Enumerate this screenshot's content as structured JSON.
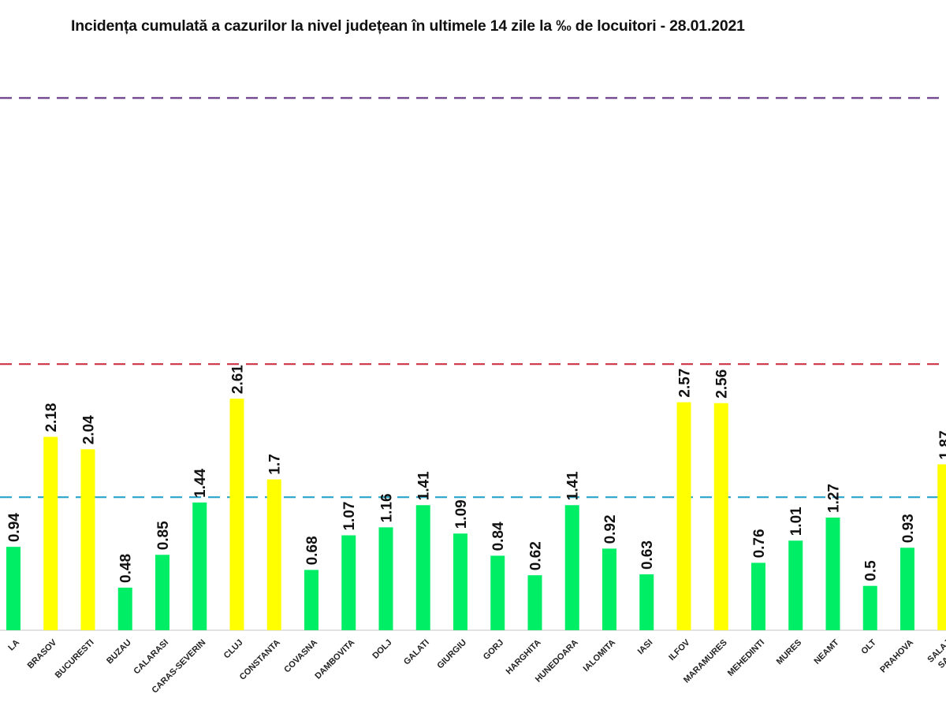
{
  "chart_data": {
    "type": "bar",
    "title": "Incidența cumulată a cazurilor la nivel județean în ultimele 14 zile la ‰ de locuitori - 28.01.2021",
    "xlabel": "",
    "ylabel": "",
    "ylim": [
      0,
      6.2
    ],
    "grid": false,
    "legend": "none",
    "categories": [
      "ALBA",
      "BRASOV",
      "BUCURESTI",
      "BUZAU",
      "CALARASI",
      "CARAS-SEVERIN",
      "CLUJ",
      "CONSTANTA",
      "COVASNA",
      "DAMBOVITA",
      "DOLJ",
      "GALATI",
      "GIURGIU",
      "GORJ",
      "HARGHITA",
      "HUNEDOARA",
      "IALOMITA",
      "IASI",
      "ILFOV",
      "MARAMURES",
      "MEHEDINTI",
      "MURES",
      "NEAMT",
      "OLT",
      "PRAHOVA",
      "SALAJ"
    ],
    "category_display": [
      "LA",
      "BRASOV",
      "BUCURESTI",
      "BUZAU",
      "CALARASI",
      "CARAS-SEVERIN",
      "CLUJ",
      "CONSTANTA",
      "COVASNA",
      "DAMBOVITA",
      "DOLJ",
      "GALATI",
      "GIURGIU",
      "GORJ",
      "HARGHITA",
      "HUNEDOARA",
      "IALOMITA",
      "IASI",
      "ILFOV",
      "MARAMURES",
      "MEHEDINTI",
      "MURES",
      "NEAMT",
      "OLT",
      "PRAHOVA",
      "SALAJ"
    ],
    "values": [
      0.94,
      2.18,
      2.04,
      0.48,
      0.85,
      1.44,
      2.61,
      1.7,
      0.68,
      1.07,
      1.16,
      1.41,
      1.09,
      0.84,
      0.62,
      1.41,
      0.92,
      0.63,
      2.57,
      2.56,
      0.76,
      1.01,
      1.27,
      0.5,
      0.93,
      1.87
    ],
    "value_labels": [
      "0.94",
      "2.18",
      "2.04",
      "0.48",
      "0.85",
      "1.44",
      "2.61",
      "1.7",
      "0.68",
      "1.07",
      "1.16",
      "1.41",
      "1.09",
      "0.84",
      "0.62",
      "1.41",
      "0.92",
      "0.63",
      "2.57",
      "2.56",
      "0.76",
      "1.01",
      "1.27",
      "0.5",
      "0.93",
      "1.87"
    ],
    "colors": {
      "below_1_5": "#00ee66",
      "between_1_5_and_3": "#ffff00"
    },
    "thresholds": [
      {
        "value": 1.5,
        "color": "#33aacc",
        "style": "dashed"
      },
      {
        "value": 3.0,
        "color": "#cc3344",
        "style": "dashed"
      },
      {
        "value": 6.0,
        "color": "#6a3d8a",
        "style": "dashed"
      }
    ],
    "trailing_partial_label": "SA"
  }
}
